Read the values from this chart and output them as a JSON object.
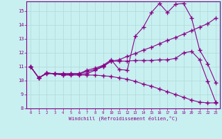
{
  "xlabel": "Windchill (Refroidissement éolien,°C)",
  "background_color": "#c8f0f0",
  "grid_color": "#b0d8d8",
  "line_color": "#880088",
  "xlim": [
    -0.5,
    23.5
  ],
  "ylim": [
    8,
    15.7
  ],
  "yticks": [
    8,
    9,
    10,
    11,
    12,
    13,
    14,
    15
  ],
  "xticks": [
    0,
    1,
    2,
    3,
    4,
    5,
    6,
    7,
    8,
    9,
    10,
    11,
    12,
    13,
    14,
    15,
    16,
    17,
    18,
    19,
    20,
    21,
    22,
    23
  ],
  "curves": [
    {
      "x": [
        0,
        1,
        2,
        3,
        4,
        5,
        6,
        7,
        8,
        9,
        10,
        11,
        12,
        13,
        14,
        15,
        16,
        17,
        18,
        19,
        20,
        21,
        22,
        23
      ],
      "y": [
        11.0,
        10.2,
        10.55,
        10.5,
        10.5,
        10.5,
        10.5,
        10.75,
        10.9,
        11.1,
        11.5,
        10.8,
        10.75,
        13.2,
        13.85,
        14.9,
        15.55,
        14.9,
        15.5,
        15.55,
        14.5,
        12.2,
        11.2,
        9.85
      ]
    },
    {
      "x": [
        0,
        1,
        2,
        3,
        4,
        5,
        6,
        7,
        8,
        9,
        10,
        11,
        12,
        13,
        14,
        15,
        16,
        17,
        18,
        19,
        20,
        21,
        22,
        23
      ],
      "y": [
        11.0,
        10.2,
        10.55,
        10.5,
        10.5,
        10.5,
        10.5,
        10.65,
        10.8,
        11.05,
        11.4,
        11.5,
        11.75,
        11.95,
        12.2,
        12.4,
        12.65,
        12.9,
        13.1,
        13.35,
        13.6,
        13.85,
        14.1,
        14.5
      ]
    },
    {
      "x": [
        0,
        1,
        2,
        3,
        4,
        5,
        6,
        7,
        8,
        9,
        10,
        11,
        12,
        13,
        14,
        15,
        16,
        17,
        18,
        19,
        20,
        21,
        22,
        23
      ],
      "y": [
        11.0,
        10.2,
        10.5,
        10.5,
        10.4,
        10.4,
        10.4,
        10.4,
        10.4,
        10.35,
        10.3,
        10.2,
        10.1,
        9.95,
        9.75,
        9.6,
        9.4,
        9.2,
        9.0,
        8.8,
        8.6,
        8.45,
        8.4,
        8.4
      ]
    },
    {
      "x": [
        0,
        1,
        2,
        3,
        4,
        5,
        6,
        7,
        8,
        9,
        10,
        11,
        12,
        13,
        14,
        15,
        16,
        17,
        18,
        19,
        20,
        21,
        22,
        23
      ],
      "y": [
        11.0,
        10.2,
        10.55,
        10.5,
        10.4,
        10.45,
        10.45,
        10.5,
        10.75,
        11.0,
        11.4,
        11.4,
        11.4,
        11.45,
        11.45,
        11.45,
        11.5,
        11.5,
        11.6,
        12.0,
        12.1,
        11.5,
        9.95,
        8.45
      ]
    }
  ]
}
